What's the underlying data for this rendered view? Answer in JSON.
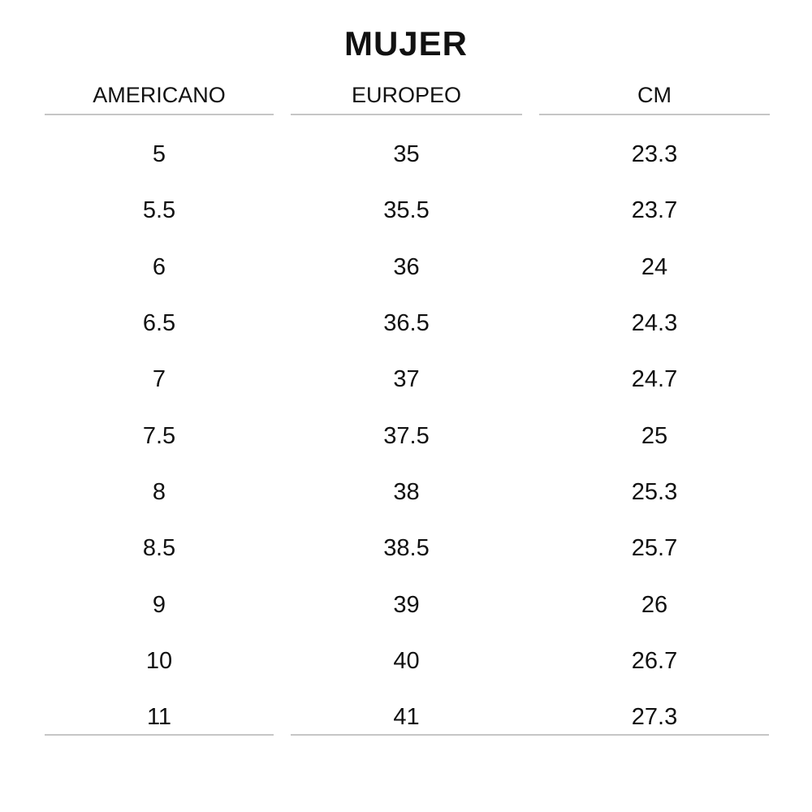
{
  "title": "MUJER",
  "table": {
    "headers": [
      {
        "key": "americano",
        "label": "AMERICANO"
      },
      {
        "key": "europeo",
        "label": "EUROPEO"
      },
      {
        "key": "cm",
        "label": "CM"
      }
    ],
    "rows": [
      {
        "americano": "5",
        "europeo": "35",
        "cm": "23.3"
      },
      {
        "americano": "5.5",
        "europeo": "35.5",
        "cm": "23.7"
      },
      {
        "americano": "6",
        "europeo": "36",
        "cm": "24"
      },
      {
        "americano": "6.5",
        "europeo": "36.5",
        "cm": "24.3"
      },
      {
        "americano": "7",
        "europeo": "37",
        "cm": "24.7"
      },
      {
        "americano": "7.5",
        "europeo": "37.5",
        "cm": "25"
      },
      {
        "americano": "8",
        "europeo": "38",
        "cm": "25.3"
      },
      {
        "americano": "8.5",
        "europeo": "38.5",
        "cm": "25.7"
      },
      {
        "americano": "9",
        "europeo": "39",
        "cm": "26"
      },
      {
        "americano": "10",
        "europeo": "40",
        "cm": "26.7"
      },
      {
        "americano": "11",
        "europeo": "41",
        "cm": "27.3"
      }
    ]
  },
  "colors": {
    "text": "#111111",
    "line": "#c6c6c6",
    "background": "#ffffff"
  }
}
